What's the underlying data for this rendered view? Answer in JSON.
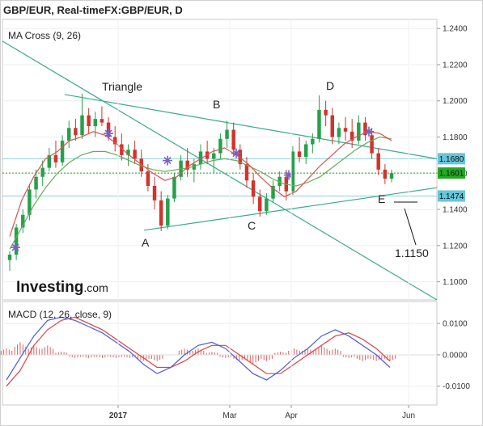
{
  "header": {
    "title": "GBP/EUR, Real-timeFX:GBP/EUR, D",
    "ma_label": "MA Cross (9, 26)",
    "macd_label": "MACD (12, 26, close, 9)",
    "logo_main": "Investing",
    "logo_suffix": ".com"
  },
  "colors": {
    "up": "#27a04a",
    "down": "#d0342c",
    "ma_fast": "#e05050",
    "ma_slow": "#6aaa5a",
    "trend": "#3aaa8e",
    "hline": "#8fd0dc",
    "last_price": "#22aa22",
    "macd_line": "#4a5adc",
    "signal_line": "#e04040",
    "hist": "#e06060",
    "cross": "#7a60c0"
  },
  "annotations": {
    "triangle": "Triangle",
    "A": "A",
    "B": "B",
    "C": "C",
    "D": "D",
    "E": "E",
    "target": "1.1150"
  },
  "chart_data": [
    {
      "type": "candlestick",
      "title": "GBP/EUR, Real-timeFX:GBP/EUR, D",
      "ylim": [
        1.09,
        1.245
      ],
      "y_ticks": [
        "1.2400",
        "1.2200",
        "1.2000",
        "1.1800",
        "1.1600",
        "1.1400",
        "1.1200",
        "1.1000"
      ],
      "x_ticks": [
        "2017",
        "Mar",
        "Apr",
        "Jun"
      ],
      "price_badges": [
        {
          "label": "1.1680",
          "value": 1.168
        },
        {
          "label": "1.1601",
          "value": 1.1601
        },
        {
          "label": "1.1474",
          "value": 1.1474
        }
      ],
      "horizontal_lines": [
        1.168,
        1.1601,
        1.1474
      ],
      "series": [
        {
          "name": "MA Cross (9, 26)",
          "values": [
            1.125,
            1.145,
            1.158,
            1.168,
            1.172,
            1.178,
            1.18,
            1.183,
            1.181,
            1.176,
            1.17,
            1.165,
            1.16,
            1.156,
            1.158,
            1.164,
            1.168,
            1.172,
            1.174,
            1.17,
            1.165,
            1.158,
            1.152,
            1.147,
            1.15,
            1.157,
            1.164,
            1.17,
            1.176,
            1.18,
            1.183,
            1.182,
            1.178
          ]
        },
        {
          "name": "MA Cross (9, 26)",
          "values": [
            1.118,
            1.13,
            1.142,
            1.152,
            1.16,
            1.166,
            1.17,
            1.172,
            1.172,
            1.17,
            1.167,
            1.164,
            1.162,
            1.161,
            1.162,
            1.163,
            1.165,
            1.167,
            1.168,
            1.167,
            1.164,
            1.161,
            1.157,
            1.154,
            1.153,
            1.155,
            1.158,
            1.163,
            1.168,
            1.173,
            1.177,
            1.18,
            1.179
          ]
        }
      ],
      "candles": [
        {
          "o": 1.112,
          "h": 1.117,
          "l": 1.106,
          "c": 1.115
        },
        {
          "o": 1.115,
          "h": 1.132,
          "l": 1.112,
          "c": 1.13
        },
        {
          "o": 1.13,
          "h": 1.14,
          "l": 1.127,
          "c": 1.137
        },
        {
          "o": 1.137,
          "h": 1.154,
          "l": 1.134,
          "c": 1.151
        },
        {
          "o": 1.151,
          "h": 1.162,
          "l": 1.146,
          "c": 1.158
        },
        {
          "o": 1.158,
          "h": 1.167,
          "l": 1.153,
          "c": 1.163
        },
        {
          "o": 1.163,
          "h": 1.174,
          "l": 1.161,
          "c": 1.17
        },
        {
          "o": 1.17,
          "h": 1.178,
          "l": 1.163,
          "c": 1.166
        },
        {
          "o": 1.166,
          "h": 1.181,
          "l": 1.164,
          "c": 1.178
        },
        {
          "o": 1.178,
          "h": 1.189,
          "l": 1.174,
          "c": 1.185
        },
        {
          "o": 1.185,
          "h": 1.19,
          "l": 1.178,
          "c": 1.181
        },
        {
          "o": 1.181,
          "h": 1.204,
          "l": 1.179,
          "c": 1.192
        },
        {
          "o": 1.192,
          "h": 1.196,
          "l": 1.182,
          "c": 1.186
        },
        {
          "o": 1.186,
          "h": 1.194,
          "l": 1.18,
          "c": 1.19
        },
        {
          "o": 1.19,
          "h": 1.197,
          "l": 1.186,
          "c": 1.188
        },
        {
          "o": 1.188,
          "h": 1.191,
          "l": 1.178,
          "c": 1.18
        },
        {
          "o": 1.18,
          "h": 1.186,
          "l": 1.172,
          "c": 1.176
        },
        {
          "o": 1.176,
          "h": 1.182,
          "l": 1.167,
          "c": 1.17
        },
        {
          "o": 1.17,
          "h": 1.176,
          "l": 1.164,
          "c": 1.173
        },
        {
          "o": 1.173,
          "h": 1.178,
          "l": 1.165,
          "c": 1.168
        },
        {
          "o": 1.168,
          "h": 1.173,
          "l": 1.158,
          "c": 1.161
        },
        {
          "o": 1.161,
          "h": 1.165,
          "l": 1.15,
          "c": 1.153
        },
        {
          "o": 1.153,
          "h": 1.158,
          "l": 1.14,
          "c": 1.145
        },
        {
          "o": 1.145,
          "h": 1.15,
          "l": 1.128,
          "c": 1.131
        },
        {
          "o": 1.131,
          "h": 1.148,
          "l": 1.129,
          "c": 1.146
        },
        {
          "o": 1.146,
          "h": 1.16,
          "l": 1.144,
          "c": 1.158
        },
        {
          "o": 1.158,
          "h": 1.17,
          "l": 1.156,
          "c": 1.167
        },
        {
          "o": 1.167,
          "h": 1.174,
          "l": 1.158,
          "c": 1.162
        },
        {
          "o": 1.162,
          "h": 1.168,
          "l": 1.155,
          "c": 1.165
        },
        {
          "o": 1.165,
          "h": 1.176,
          "l": 1.162,
          "c": 1.172
        },
        {
          "o": 1.172,
          "h": 1.178,
          "l": 1.165,
          "c": 1.168
        },
        {
          "o": 1.168,
          "h": 1.174,
          "l": 1.16,
          "c": 1.171
        },
        {
          "o": 1.171,
          "h": 1.182,
          "l": 1.168,
          "c": 1.179
        },
        {
          "o": 1.179,
          "h": 1.189,
          "l": 1.174,
          "c": 1.184
        },
        {
          "o": 1.184,
          "h": 1.188,
          "l": 1.17,
          "c": 1.173
        },
        {
          "o": 1.173,
          "h": 1.176,
          "l": 1.162,
          "c": 1.165
        },
        {
          "o": 1.165,
          "h": 1.169,
          "l": 1.152,
          "c": 1.156
        },
        {
          "o": 1.156,
          "h": 1.16,
          "l": 1.143,
          "c": 1.147
        },
        {
          "o": 1.147,
          "h": 1.151,
          "l": 1.136,
          "c": 1.139
        },
        {
          "o": 1.139,
          "h": 1.149,
          "l": 1.137,
          "c": 1.146
        },
        {
          "o": 1.146,
          "h": 1.156,
          "l": 1.144,
          "c": 1.153
        },
        {
          "o": 1.153,
          "h": 1.161,
          "l": 1.15,
          "c": 1.158
        },
        {
          "o": 1.158,
          "h": 1.162,
          "l": 1.145,
          "c": 1.15
        },
        {
          "o": 1.15,
          "h": 1.175,
          "l": 1.148,
          "c": 1.172
        },
        {
          "o": 1.172,
          "h": 1.18,
          "l": 1.166,
          "c": 1.169
        },
        {
          "o": 1.169,
          "h": 1.178,
          "l": 1.165,
          "c": 1.176
        },
        {
          "o": 1.176,
          "h": 1.182,
          "l": 1.171,
          "c": 1.179
        },
        {
          "o": 1.179,
          "h": 1.203,
          "l": 1.177,
          "c": 1.195
        },
        {
          "o": 1.195,
          "h": 1.2,
          "l": 1.186,
          "c": 1.192
        },
        {
          "o": 1.192,
          "h": 1.196,
          "l": 1.176,
          "c": 1.18
        },
        {
          "o": 1.18,
          "h": 1.188,
          "l": 1.176,
          "c": 1.185
        },
        {
          "o": 1.185,
          "h": 1.191,
          "l": 1.178,
          "c": 1.183
        },
        {
          "o": 1.183,
          "h": 1.19,
          "l": 1.174,
          "c": 1.178
        },
        {
          "o": 1.178,
          "h": 1.192,
          "l": 1.176,
          "c": 1.188
        },
        {
          "o": 1.188,
          "h": 1.191,
          "l": 1.178,
          "c": 1.181
        },
        {
          "o": 1.181,
          "h": 1.185,
          "l": 1.168,
          "c": 1.171
        },
        {
          "o": 1.171,
          "h": 1.174,
          "l": 1.159,
          "c": 1.162
        },
        {
          "o": 1.162,
          "h": 1.165,
          "l": 1.154,
          "c": 1.157
        },
        {
          "o": 1.157,
          "h": 1.162,
          "l": 1.155,
          "c": 1.16
        }
      ],
      "annotations": [
        "Triangle",
        "A",
        "B",
        "C",
        "D",
        "E",
        "1.1150"
      ]
    },
    {
      "type": "line",
      "title": "MACD (12, 26, close, 9)",
      "ylim": [
        -0.016,
        0.017
      ],
      "y_ticks": [
        "0.0100",
        "0.0000",
        "-0.0100"
      ],
      "series": [
        {
          "name": "MACD (12, 26, close, 9)",
          "values": [
            -0.008,
            -0.001,
            0.006,
            0.011,
            0.012,
            0.011,
            0.009,
            0.007,
            0.004,
            0.001,
            -0.003,
            -0.006,
            -0.004,
            0.0,
            0.003,
            0.004,
            0.002,
            -0.002,
            -0.006,
            -0.008,
            -0.005,
            -0.001,
            0.002,
            0.006,
            0.008,
            0.006,
            0.003,
            0.0,
            -0.004
          ]
        },
        {
          "name": "MACD (12, 26, close, 9)",
          "values": [
            -0.01,
            -0.005,
            0.003,
            0.008,
            0.011,
            0.012,
            0.01,
            0.008,
            0.005,
            0.002,
            -0.001,
            -0.004,
            -0.004,
            -0.002,
            0.001,
            0.003,
            0.003,
            0.0,
            -0.003,
            -0.006,
            -0.006,
            -0.003,
            0.0,
            0.003,
            0.006,
            0.007,
            0.005,
            0.002,
            -0.002
          ]
        }
      ],
      "histogram": [
        0.002,
        0.004,
        0.003,
        0.003,
        0.001,
        -0.001,
        -0.001,
        -0.001,
        -0.001,
        -0.001,
        -0.002,
        -0.002,
        0.0,
        0.002,
        0.002,
        0.001,
        -0.001,
        -0.002,
        -0.003,
        -0.002,
        0.001,
        0.002,
        0.002,
        0.003,
        0.002,
        -0.001,
        -0.002,
        -0.002,
        -0.002
      ],
      "x_ticks": [
        "2017",
        "Mar",
        "Apr",
        "Jun"
      ]
    }
  ]
}
